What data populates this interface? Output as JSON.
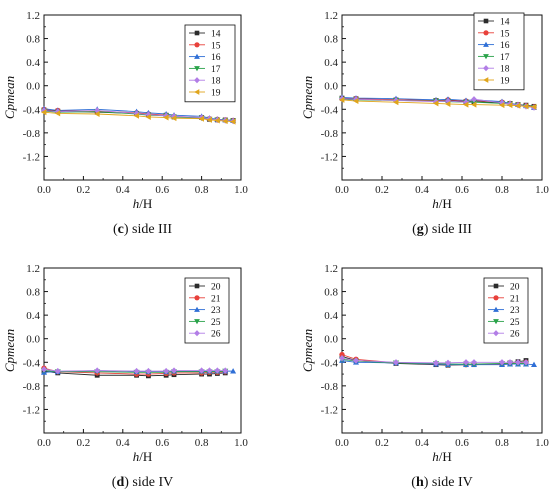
{
  "chart_data": [
    {
      "type": "line",
      "caption": {
        "letter": "c",
        "text": "side III"
      },
      "xlabel": {
        "italic": "h",
        "rest": "/H"
      },
      "ylabel": "Cpmean",
      "xlim": [
        0.0,
        1.0
      ],
      "ylim": [
        -1.6,
        1.2
      ],
      "xticks": [
        "0.0",
        "0.2",
        "0.4",
        "0.6",
        "0.8",
        "1.0"
      ],
      "yticks": [
        "1.2",
        "0.8",
        "0.4",
        "0.0",
        "-0.4",
        "-0.8",
        "-1.2"
      ],
      "legend_position": "top-right",
      "x": [
        0.0,
        0.07,
        0.27,
        0.47,
        0.53,
        0.62,
        0.66,
        0.8,
        0.84,
        0.88,
        0.92,
        0.96
      ],
      "series": [
        {
          "name": "14",
          "color": "#2b2b2b",
          "marker": "square",
          "values": [
            -0.41,
            -0.43,
            -0.45,
            -0.47,
            -0.49,
            -0.5,
            -0.53,
            -0.54,
            -0.57,
            -0.58,
            -0.58,
            -0.59
          ]
        },
        {
          "name": "15",
          "color": "#e8413b",
          "marker": "circle",
          "values": [
            -0.4,
            -0.42,
            -0.43,
            -0.46,
            -0.48,
            -0.5,
            -0.52,
            -0.54,
            -0.56,
            -0.57,
            -0.58,
            -0.59
          ]
        },
        {
          "name": "16",
          "color": "#2f6fd6",
          "marker": "triangle",
          "values": [
            -0.39,
            -0.42,
            -0.4,
            -0.44,
            -0.46,
            -0.48,
            -0.5,
            -0.52,
            -0.55,
            -0.57,
            -0.58,
            -0.59
          ]
        },
        {
          "name": "17",
          "color": "#2aa34a",
          "marker": "tridown",
          "values": [
            -0.43,
            -0.45,
            -0.44,
            -0.48,
            -0.5,
            -0.51,
            -0.53,
            -0.55,
            -0.57,
            -0.58,
            -0.59,
            -0.6
          ]
        },
        {
          "name": "18",
          "color": "#b27ee6",
          "marker": "diamond",
          "values": [
            -0.42,
            -0.44,
            -0.42,
            -0.47,
            -0.49,
            -0.51,
            -0.52,
            -0.54,
            -0.56,
            -0.58,
            -0.59,
            -0.6
          ]
        },
        {
          "name": "19",
          "color": "#e0a51c",
          "marker": "trileft",
          "values": [
            -0.45,
            -0.47,
            -0.48,
            -0.51,
            -0.53,
            -0.54,
            -0.55,
            -0.56,
            -0.58,
            -0.59,
            -0.6,
            -0.61
          ]
        }
      ]
    },
    {
      "type": "line",
      "caption": {
        "letter": "g",
        "text": "side III"
      },
      "xlabel": {
        "italic": "h",
        "rest": "/H"
      },
      "ylabel": "Cpmean",
      "xlim": [
        0.0,
        1.0
      ],
      "ylim": [
        -1.6,
        1.2
      ],
      "xticks": [
        "0.0",
        "0.2",
        "0.4",
        "0.6",
        "0.8",
        "1.0"
      ],
      "yticks": [
        "1.2",
        "0.8",
        "0.4",
        "0.0",
        "-0.4",
        "-0.8",
        "-1.2"
      ],
      "legend_position": "top-right",
      "x": [
        0.0,
        0.07,
        0.27,
        0.47,
        0.53,
        0.62,
        0.66,
        0.8,
        0.84,
        0.88,
        0.92,
        0.96
      ],
      "series": [
        {
          "name": "14",
          "color": "#2b2b2b",
          "marker": "square",
          "values": [
            -0.21,
            -0.22,
            -0.24,
            -0.25,
            -0.25,
            -0.27,
            -0.27,
            -0.29,
            -0.3,
            -0.32,
            -0.33,
            -0.35
          ]
        },
        {
          "name": "15",
          "color": "#e8413b",
          "marker": "circle",
          "values": [
            -0.22,
            -0.22,
            -0.24,
            -0.25,
            -0.24,
            -0.26,
            -0.25,
            -0.28,
            -0.3,
            -0.32,
            -0.34,
            -0.36
          ]
        },
        {
          "name": "16",
          "color": "#2f6fd6",
          "marker": "triangle",
          "values": [
            -0.2,
            -0.21,
            -0.22,
            -0.24,
            -0.23,
            -0.25,
            -0.24,
            -0.27,
            -0.3,
            -0.32,
            -0.34,
            -0.37
          ]
        },
        {
          "name": "17",
          "color": "#2aa34a",
          "marker": "tridown",
          "values": [
            -0.23,
            -0.24,
            -0.25,
            -0.26,
            -0.27,
            -0.28,
            -0.28,
            -0.3,
            -0.31,
            -0.33,
            -0.35,
            -0.37
          ]
        },
        {
          "name": "18",
          "color": "#b27ee6",
          "marker": "diamond",
          "values": [
            -0.22,
            -0.23,
            -0.25,
            -0.27,
            -0.26,
            -0.28,
            -0.23,
            -0.29,
            -0.31,
            -0.33,
            -0.35,
            -0.37
          ]
        },
        {
          "name": "19",
          "color": "#e0a51c",
          "marker": "trileft",
          "values": [
            -0.24,
            -0.26,
            -0.28,
            -0.3,
            -0.31,
            -0.32,
            -0.32,
            -0.33,
            -0.33,
            -0.34,
            -0.35,
            -0.36
          ]
        }
      ]
    },
    {
      "type": "line",
      "caption": {
        "letter": "d",
        "text": "side IV"
      },
      "xlabel": {
        "italic": "h",
        "rest": "/H"
      },
      "ylabel": "Cpmean",
      "xlim": [
        0.0,
        1.0
      ],
      "ylim": [
        -1.6,
        1.2
      ],
      "xticks": [
        "0.0",
        "0.2",
        "0.4",
        "0.6",
        "0.8",
        "1.0"
      ],
      "yticks": [
        "1.2",
        "0.8",
        "0.4",
        "0.0",
        "-0.4",
        "-0.8",
        "-1.2"
      ],
      "legend_position": "top-right",
      "x": [
        0.0,
        0.07,
        0.27,
        0.47,
        0.53,
        0.62,
        0.66,
        0.8,
        0.84,
        0.88,
        0.92,
        0.96
      ],
      "series": [
        {
          "name": "20",
          "color": "#2b2b2b",
          "marker": "square",
          "values": [
            -0.55,
            -0.58,
            -0.62,
            -0.62,
            -0.63,
            -0.62,
            -0.61,
            -0.6,
            -0.6,
            -0.59,
            -0.58,
            null
          ]
        },
        {
          "name": "21",
          "color": "#e8413b",
          "marker": "circle",
          "values": [
            -0.5,
            -0.56,
            -0.58,
            -0.6,
            -0.6,
            -0.59,
            -0.58,
            -0.58,
            -0.57,
            -0.57,
            -0.56,
            null
          ]
        },
        {
          "name": "23",
          "color": "#2f6fd6",
          "marker": "triangle",
          "values": [
            -0.57,
            -0.56,
            -0.54,
            -0.56,
            -0.56,
            -0.56,
            -0.55,
            -0.55,
            -0.55,
            -0.55,
            -0.55,
            -0.55
          ]
        },
        {
          "name": "25",
          "color": "#2aa34a",
          "marker": "tridown",
          "values": [
            -0.54,
            -0.56,
            -0.56,
            -0.57,
            -0.57,
            -0.57,
            -0.56,
            -0.56,
            -0.56,
            -0.56,
            -0.55,
            null
          ]
        },
        {
          "name": "26",
          "color": "#b27ee6",
          "marker": "diamond",
          "values": [
            -0.52,
            -0.55,
            -0.54,
            -0.55,
            -0.55,
            -0.55,
            -0.54,
            -0.54,
            -0.54,
            -0.54,
            -0.54,
            null
          ]
        }
      ]
    },
    {
      "type": "line",
      "caption": {
        "letter": "h",
        "text": "side IV"
      },
      "xlabel": {
        "italic": "h",
        "rest": "/H"
      },
      "ylabel": "Cpmean",
      "xlim": [
        0.0,
        1.0
      ],
      "ylim": [
        -1.6,
        1.2
      ],
      "xticks": [
        "0.0",
        "0.2",
        "0.4",
        "0.6",
        "0.8",
        "1.0"
      ],
      "yticks": [
        "1.2",
        "0.8",
        "0.4",
        "0.0",
        "-0.4",
        "-0.8",
        "-1.2"
      ],
      "legend_position": "top-right",
      "x": [
        0.0,
        0.07,
        0.27,
        0.47,
        0.53,
        0.62,
        0.66,
        0.8,
        0.84,
        0.88,
        0.92,
        0.96
      ],
      "series": [
        {
          "name": "20",
          "color": "#2b2b2b",
          "marker": "square",
          "values": [
            -0.3,
            -0.37,
            -0.42,
            -0.44,
            -0.45,
            -0.44,
            -0.44,
            -0.43,
            -0.41,
            -0.39,
            -0.37,
            null
          ]
        },
        {
          "name": "21",
          "color": "#e8413b",
          "marker": "circle",
          "values": [
            -0.27,
            -0.35,
            -0.41,
            -0.43,
            -0.44,
            -0.44,
            -0.43,
            -0.43,
            -0.42,
            -0.41,
            -0.4,
            null
          ]
        },
        {
          "name": "23",
          "color": "#2f6fd6",
          "marker": "triangle",
          "values": [
            -0.37,
            -0.4,
            -0.41,
            -0.43,
            -0.44,
            -0.44,
            -0.44,
            -0.44,
            -0.43,
            -0.43,
            -0.43,
            -0.44
          ]
        },
        {
          "name": "25",
          "color": "#2aa34a",
          "marker": "tridown",
          "values": [
            -0.35,
            -0.38,
            -0.41,
            -0.42,
            -0.43,
            -0.43,
            -0.43,
            -0.42,
            -0.42,
            -0.42,
            -0.42,
            null
          ]
        },
        {
          "name": "26",
          "color": "#b27ee6",
          "marker": "diamond",
          "values": [
            -0.33,
            -0.37,
            -0.4,
            -0.41,
            -0.41,
            -0.4,
            -0.4,
            -0.4,
            -0.4,
            -0.4,
            -0.4,
            null
          ]
        }
      ]
    }
  ]
}
